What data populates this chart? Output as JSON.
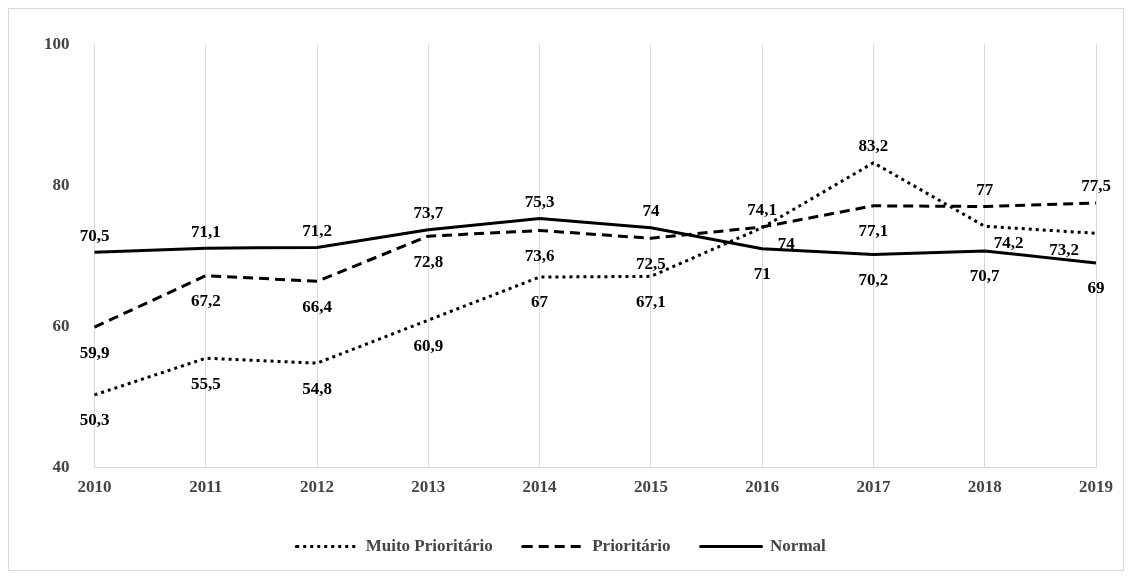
{
  "chart_data": {
    "type": "line",
    "categories": [
      "2010",
      "2011",
      "2012",
      "2013",
      "2014",
      "2015",
      "2016",
      "2017",
      "2018",
      "2019"
    ],
    "series": [
      {
        "name": "Muito Prioritário",
        "color": "#000000",
        "line_style": "dotted",
        "values": [
          50.3,
          55.5,
          54.8,
          60.9,
          67,
          67.1,
          74,
          83.2,
          74.2,
          73.2
        ],
        "value_labels": [
          "50,3",
          "55,5",
          "54,8",
          "60,9",
          "67",
          "67,1",
          "74",
          "83,2",
          "74,2",
          "73,2"
        ]
      },
      {
        "name": "Prioritário",
        "color": "#000000",
        "line_style": "dashed",
        "values": [
          59.9,
          67.2,
          66.4,
          72.8,
          73.6,
          72.5,
          74.1,
          77.1,
          77,
          77.5
        ],
        "value_labels": [
          "59,9",
          "67,2",
          "66,4",
          "72,8",
          "73,6",
          "72,5",
          "74,1",
          "77,1",
          "77",
          "77,5"
        ]
      },
      {
        "name": "Normal",
        "color": "#000000",
        "line_style": "solid",
        "values": [
          70.5,
          71.1,
          71.2,
          73.7,
          75.3,
          74,
          71,
          70.2,
          70.7,
          69
        ],
        "value_labels": [
          "70,5",
          "71,1",
          "71,2",
          "73,7",
          "75,3",
          "74",
          "71",
          "70,2",
          "70,7",
          "69"
        ]
      }
    ],
    "ylim": [
      40,
      100
    ],
    "yticks": [
      40,
      60,
      80,
      100
    ],
    "grid": "x",
    "legend": "bottom",
    "marker": "none"
  }
}
